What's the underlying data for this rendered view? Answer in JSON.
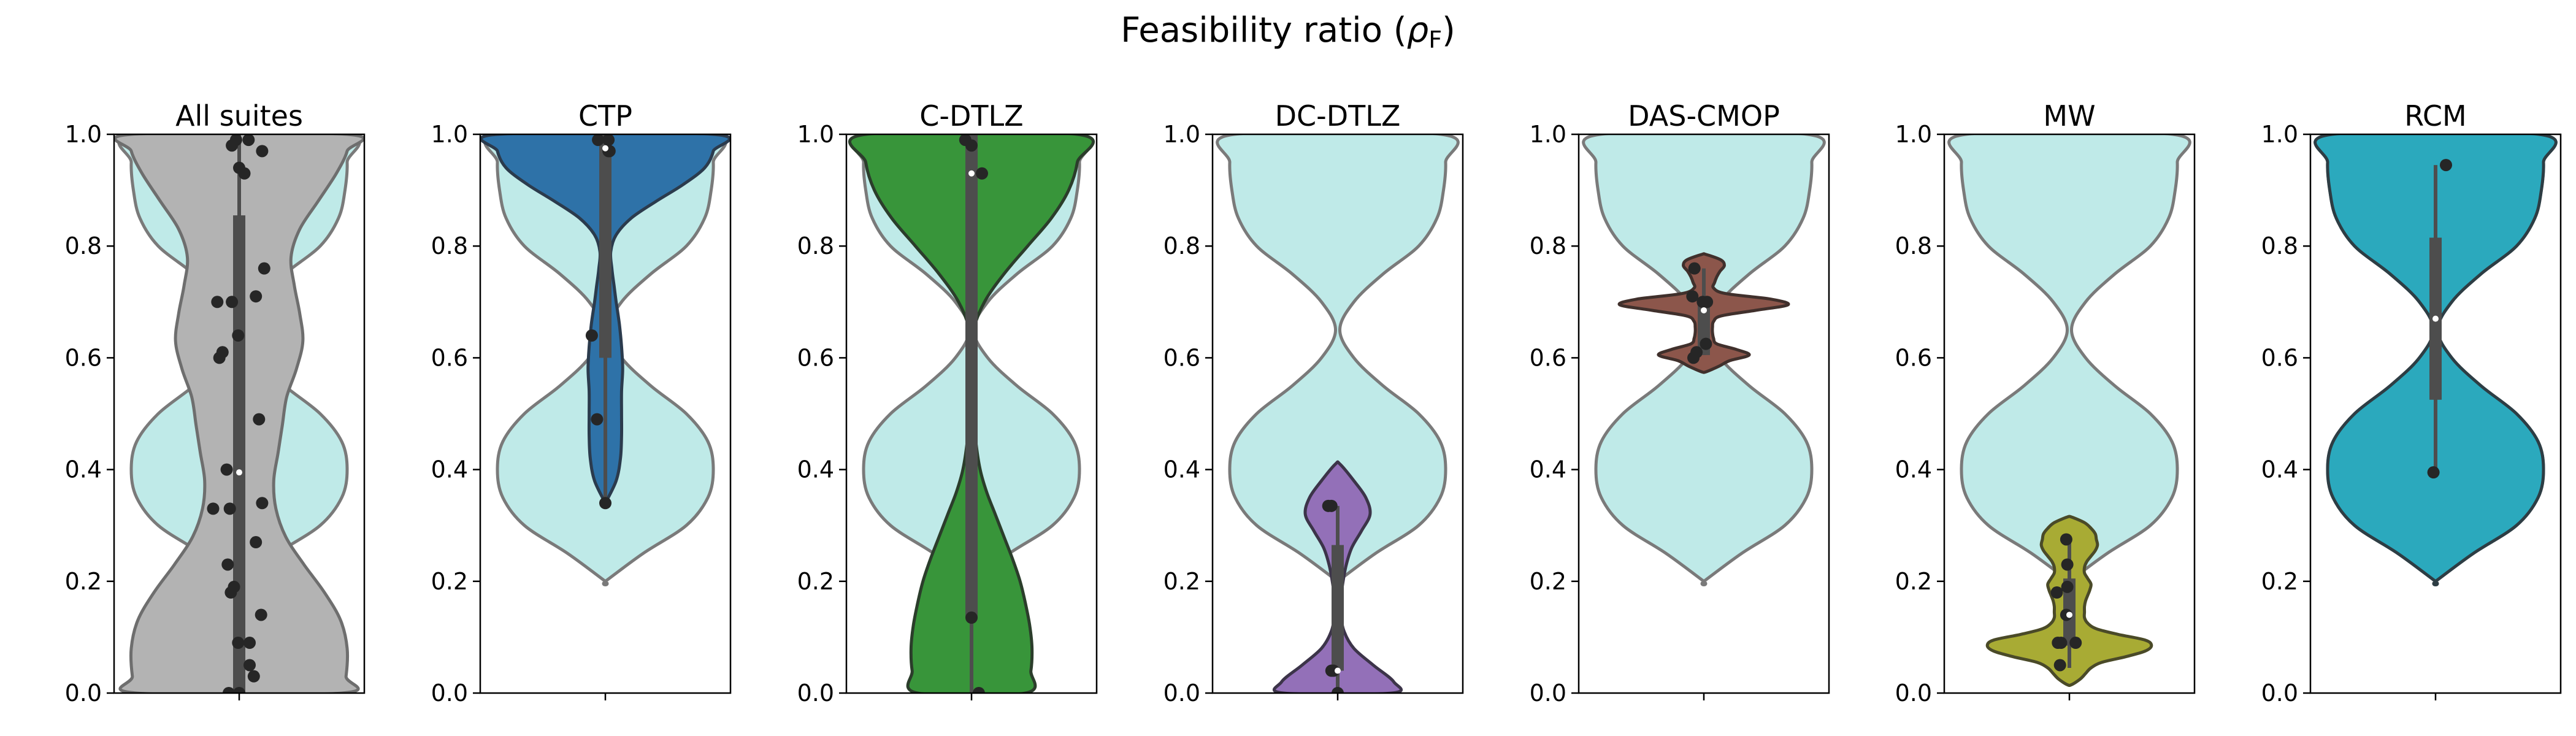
{
  "figure": {
    "title_prefix": "Feasibility ratio (",
    "title_symbol": "ρ",
    "title_subscript": "F",
    "title_suffix": ")"
  },
  "colors": {
    "reference_fill": "#bfeae8",
    "reference_edge": "#7a7a7a",
    "box": "#4d4d4d",
    "points": "#262626",
    "median": "#ffffff"
  },
  "chart_data": {
    "type": "violin",
    "ylim": [
      0,
      1
    ],
    "yticks": [
      0.0,
      0.2,
      0.4,
      0.6,
      0.8,
      1.0
    ],
    "ytick_labels": [
      "0.0",
      "0.2",
      "0.4",
      "0.6",
      "0.8",
      "1.0"
    ],
    "reference_density": {
      "description_values": [
        0.2,
        0.4,
        0.65,
        0.92,
        1.0
      ],
      "y": [
        0.2,
        0.25,
        0.3,
        0.35,
        0.4,
        0.45,
        0.5,
        0.55,
        0.6,
        0.65,
        0.7,
        0.75,
        0.8,
        0.85,
        0.9,
        0.95,
        1.0
      ],
      "width": [
        0.0,
        0.35,
        0.75,
        0.95,
        1.0,
        0.95,
        0.75,
        0.42,
        0.15,
        0.02,
        0.15,
        0.42,
        0.75,
        0.92,
        0.98,
        1.0,
        0.96
      ]
    },
    "panels": [
      {
        "title": "All suites",
        "color": "#b3b3b3",
        "edge": "#6e6e6e",
        "density": {
          "y": [
            0.0,
            0.03,
            0.08,
            0.13,
            0.18,
            0.23,
            0.28,
            0.33,
            0.38,
            0.43,
            0.48,
            0.53,
            0.58,
            0.63,
            0.68,
            0.73,
            0.78,
            0.83,
            0.88,
            0.93,
            0.97,
            1.0
          ],
          "width": [
            0.95,
            0.99,
            1.0,
            0.94,
            0.79,
            0.6,
            0.43,
            0.34,
            0.32,
            0.36,
            0.4,
            0.44,
            0.53,
            0.59,
            0.56,
            0.51,
            0.48,
            0.56,
            0.73,
            0.9,
            1.0,
            1.0
          ]
        },
        "box": {
          "q1": 0.0,
          "median": 0.395,
          "q3": 0.855,
          "whisker_low": 0.0,
          "whisker_high": 1.0
        },
        "points": [
          {
            "x": -0.1,
            "y": 0.0
          },
          {
            "x": 0.0,
            "y": 0.0
          },
          {
            "x": 0.14,
            "y": 0.03
          },
          {
            "x": 0.1,
            "y": 0.05
          },
          {
            "x": 0.21,
            "y": 0.14
          },
          {
            "x": -0.01,
            "y": 0.09
          },
          {
            "x": 0.1,
            "y": 0.09
          },
          {
            "x": -0.08,
            "y": 0.18
          },
          {
            "x": -0.05,
            "y": 0.19
          },
          {
            "x": -0.11,
            "y": 0.23
          },
          {
            "x": 0.16,
            "y": 0.27
          },
          {
            "x": -0.25,
            "y": 0.33
          },
          {
            "x": -0.09,
            "y": 0.33
          },
          {
            "x": 0.22,
            "y": 0.34
          },
          {
            "x": -0.12,
            "y": 0.4
          },
          {
            "x": 0.19,
            "y": 0.49
          },
          {
            "x": -0.19,
            "y": 0.6
          },
          {
            "x": -0.16,
            "y": 0.61
          },
          {
            "x": -0.01,
            "y": 0.64
          },
          {
            "x": -0.21,
            "y": 0.7
          },
          {
            "x": -0.07,
            "y": 0.7
          },
          {
            "x": 0.16,
            "y": 0.71
          },
          {
            "x": 0.24,
            "y": 0.76
          },
          {
            "x": 0.0,
            "y": 0.94
          },
          {
            "x": 0.05,
            "y": 0.93
          },
          {
            "x": -0.07,
            "y": 0.98
          },
          {
            "x": -0.03,
            "y": 0.99
          },
          {
            "x": 0.09,
            "y": 0.99
          },
          {
            "x": 0.22,
            "y": 0.97
          }
        ]
      },
      {
        "title": "CTP",
        "color": "#2e72a8",
        "edge": "#2b3b4d",
        "density": {
          "y": [
            0.34,
            0.38,
            0.42,
            0.46,
            0.5,
            0.54,
            0.58,
            0.62,
            0.66,
            0.7,
            0.73,
            0.76,
            0.79,
            0.82,
            0.85,
            0.88,
            0.91,
            0.94,
            0.97,
            1.0
          ],
          "width": [
            0.0,
            0.1,
            0.14,
            0.15,
            0.15,
            0.15,
            0.16,
            0.15,
            0.13,
            0.1,
            0.08,
            0.06,
            0.05,
            0.1,
            0.24,
            0.47,
            0.72,
            0.92,
            1.0,
            1.0
          ]
        },
        "box": {
          "q1": 0.6,
          "median": 0.975,
          "q3": 1.0,
          "whisker_low": 0.34,
          "whisker_high": 1.0
        },
        "points": [
          {
            "x": 0.0,
            "y": 0.34
          },
          {
            "x": -0.08,
            "y": 0.49
          },
          {
            "x": -0.13,
            "y": 0.64
          },
          {
            "x": 0.03,
            "y": 0.97
          },
          {
            "x": -0.07,
            "y": 0.99
          },
          {
            "x": 0.03,
            "y": 0.99
          },
          {
            "x": 0.04,
            "y": 0.97
          }
        ]
      },
      {
        "title": "C-DTLZ",
        "color": "#38953a",
        "edge": "#2b3d2b",
        "density": {
          "y": [
            0.0,
            0.04,
            0.08,
            0.12,
            0.16,
            0.2,
            0.24,
            0.28,
            0.32,
            0.36,
            0.4,
            0.45,
            0.5,
            0.55,
            0.6,
            0.65,
            0.7,
            0.75,
            0.8,
            0.85,
            0.9,
            0.95,
            1.0
          ],
          "width": [
            0.5,
            0.55,
            0.56,
            0.54,
            0.5,
            0.45,
            0.38,
            0.3,
            0.22,
            0.14,
            0.08,
            0.04,
            0.02,
            0.01,
            0.01,
            0.02,
            0.12,
            0.3,
            0.52,
            0.74,
            0.9,
            0.98,
            0.98
          ]
        },
        "box": {
          "q1": 0.135,
          "median": 0.93,
          "q3": 1.0,
          "whisker_low": 0.0,
          "whisker_high": 1.0
        },
        "points": [
          {
            "x": 0.07,
            "y": 0.0
          },
          {
            "x": 0.0,
            "y": 0.135
          },
          {
            "x": 0.1,
            "y": 0.93
          },
          {
            "x": -0.06,
            "y": 0.99
          },
          {
            "x": 0.0,
            "y": 0.98
          }
        ]
      },
      {
        "title": "DC-DTLZ",
        "color": "#9370b8",
        "edge": "#3c3449",
        "density": {
          "y": [
            0.0,
            0.02,
            0.05,
            0.08,
            0.11,
            0.14,
            0.17,
            0.2,
            0.23,
            0.26,
            0.29,
            0.32,
            0.35,
            0.38,
            0.41
          ],
          "width": [
            0.5,
            0.52,
            0.33,
            0.15,
            0.06,
            0.03,
            0.03,
            0.05,
            0.08,
            0.13,
            0.22,
            0.3,
            0.26,
            0.15,
            0.02
          ]
        },
        "box": {
          "q1": 0.04,
          "median": 0.04,
          "q3": 0.265,
          "whisker_low": 0.0,
          "whisker_high": 0.335
        },
        "points": [
          {
            "x": 0.0,
            "y": 0.0
          },
          {
            "x": -0.06,
            "y": 0.04
          },
          {
            "x": -0.04,
            "y": 0.04
          },
          {
            "x": -0.06,
            "y": 0.335
          },
          {
            "x": -0.09,
            "y": 0.335
          }
        ]
      },
      {
        "title": "DAS-CMOP",
        "color": "#8c564b",
        "edge": "#40302c",
        "density": {
          "y": [
            0.575,
            0.585,
            0.595,
            0.605,
            0.615,
            0.625,
            0.635,
            0.645,
            0.655,
            0.665,
            0.675,
            0.685,
            0.695,
            0.705,
            0.715,
            0.725,
            0.735,
            0.745,
            0.755,
            0.765,
            0.775,
            0.785
          ],
          "width": [
            0.02,
            0.14,
            0.24,
            0.42,
            0.3,
            0.12,
            0.09,
            0.08,
            0.08,
            0.09,
            0.16,
            0.48,
            0.78,
            0.62,
            0.2,
            0.09,
            0.1,
            0.12,
            0.15,
            0.19,
            0.16,
            0.02
          ]
        },
        "box": {
          "q1": 0.605,
          "median": 0.685,
          "q3": 0.705,
          "whisker_low": 0.605,
          "whisker_high": 0.76
        },
        "points": [
          {
            "x": -0.07,
            "y": 0.61
          },
          {
            "x": -0.1,
            "y": 0.6
          },
          {
            "x": 0.02,
            "y": 0.625
          },
          {
            "x": -0.01,
            "y": 0.7
          },
          {
            "x": 0.03,
            "y": 0.7
          },
          {
            "x": -0.11,
            "y": 0.71
          },
          {
            "x": -0.09,
            "y": 0.76
          }
        ]
      },
      {
        "title": "MW",
        "color": "#a8ab34",
        "edge": "#4a4a28",
        "density": {
          "y": [
            0.015,
            0.025,
            0.035,
            0.045,
            0.055,
            0.065,
            0.075,
            0.085,
            0.095,
            0.105,
            0.115,
            0.125,
            0.135,
            0.145,
            0.155,
            0.165,
            0.175,
            0.185,
            0.195,
            0.205,
            0.215,
            0.225,
            0.235,
            0.245,
            0.255,
            0.265,
            0.275,
            0.285,
            0.295,
            0.305,
            0.315
          ],
          "width": [
            0.02,
            0.1,
            0.15,
            0.2,
            0.3,
            0.52,
            0.7,
            0.76,
            0.7,
            0.45,
            0.25,
            0.17,
            0.14,
            0.14,
            0.14,
            0.15,
            0.17,
            0.19,
            0.2,
            0.17,
            0.14,
            0.14,
            0.16,
            0.2,
            0.24,
            0.26,
            0.25,
            0.24,
            0.2,
            0.14,
            0.02
          ]
        },
        "box": {
          "q1": 0.085,
          "median": 0.14,
          "q3": 0.205,
          "whisker_low": 0.045,
          "whisker_high": 0.275
        },
        "points": [
          {
            "x": -0.09,
            "y": 0.05
          },
          {
            "x": -0.11,
            "y": 0.09
          },
          {
            "x": -0.08,
            "y": 0.09
          },
          {
            "x": 0.06,
            "y": 0.09
          },
          {
            "x": -0.03,
            "y": 0.14
          },
          {
            "x": -0.12,
            "y": 0.18
          },
          {
            "x": -0.02,
            "y": 0.19
          },
          {
            "x": -0.02,
            "y": 0.23
          },
          {
            "x": -0.03,
            "y": 0.275
          }
        ]
      },
      {
        "title": "RCM",
        "color": "#2ba9bd",
        "edge": "#2d3d44",
        "density": {
          "y": [
            0.2,
            0.25,
            0.3,
            0.35,
            0.4,
            0.45,
            0.5,
            0.55,
            0.6,
            0.65,
            0.7,
            0.75,
            0.8,
            0.85,
            0.9,
            0.95,
            1.0
          ],
          "width": [
            0.0,
            0.35,
            0.75,
            0.95,
            1.0,
            0.95,
            0.75,
            0.42,
            0.15,
            0.02,
            0.15,
            0.42,
            0.75,
            0.92,
            0.98,
            1.0,
            0.96
          ]
        },
        "box": {
          "q1": 0.525,
          "median": 0.67,
          "q3": 0.815,
          "whisker_low": 0.395,
          "whisker_high": 0.945
        },
        "points": [
          {
            "x": -0.02,
            "y": 0.395
          },
          {
            "x": 0.1,
            "y": 0.945
          }
        ]
      }
    ]
  }
}
